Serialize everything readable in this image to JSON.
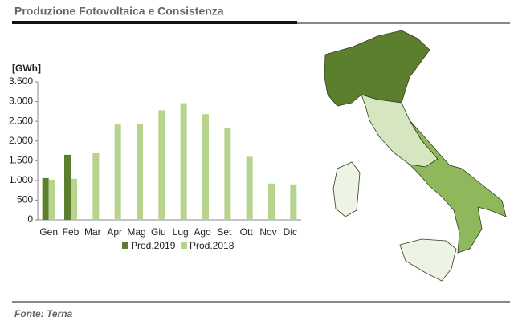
{
  "title": "Produzione Fotovoltaica e Consistenza",
  "source": "Fonte: Terna",
  "chart_data": {
    "type": "bar",
    "ylabel": "[GWh]",
    "categories": [
      "Gen",
      "Feb",
      "Mar",
      "Apr",
      "Mag",
      "Giu",
      "Lug",
      "Ago",
      "Set",
      "Ott",
      "Nov",
      "Dic"
    ],
    "series": [
      {
        "name": "Prod.2019",
        "color": "#5b7f2c",
        "values": [
          1060,
          1650,
          null,
          null,
          null,
          null,
          null,
          null,
          null,
          null,
          null,
          null
        ]
      },
      {
        "name": "Prod.2018",
        "color": "#b6d48c",
        "values": [
          1020,
          1040,
          1690,
          2420,
          2430,
          2780,
          2960,
          2680,
          2340,
          1600,
          920,
          900
        ]
      }
    ],
    "ylim": [
      0,
      3500
    ],
    "yticks": [
      0,
      500,
      {
        "value": 1000,
        "label": "1.000"
      },
      {
        "value": 1500,
        "label": "1.500"
      },
      {
        "value": 2000,
        "label": "2.000"
      },
      {
        "value": 2500,
        "label": "2.500"
      },
      {
        "value": 3000,
        "label": "3.000"
      },
      {
        "value": 3500,
        "label": "3.500"
      }
    ],
    "legend": "bottom"
  }
}
